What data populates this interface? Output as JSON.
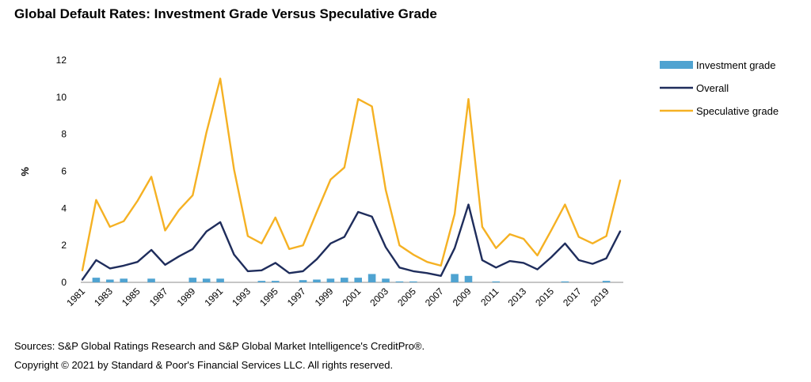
{
  "chart_data": {
    "type": "line",
    "title": "Global Default Rates: Investment Grade Versus Speculative Grade",
    "ylabel": "%",
    "xlabel": "",
    "ylim": [
      0,
      12
    ],
    "yticks": [
      0,
      2,
      4,
      6,
      8,
      10,
      12
    ],
    "x": [
      1981,
      1982,
      1983,
      1984,
      1985,
      1986,
      1987,
      1988,
      1989,
      1990,
      1991,
      1992,
      1993,
      1994,
      1995,
      1996,
      1997,
      1998,
      1999,
      2000,
      2001,
      2002,
      2003,
      2004,
      2005,
      2006,
      2007,
      2008,
      2009,
      2010,
      2011,
      2012,
      2013,
      2014,
      2015,
      2016,
      2017,
      2018,
      2019,
      2020
    ],
    "xticks": [
      "1981",
      "1983",
      "1985",
      "1987",
      "1989",
      "1991",
      "1993",
      "1995",
      "1997",
      "1999",
      "2001",
      "2003",
      "2005",
      "2007",
      "2009",
      "2011",
      "2013",
      "2015",
      "2017",
      "2019"
    ],
    "legend_position": "right",
    "grid": false,
    "series": [
      {
        "name": "Investment grade",
        "type": "bar",
        "color": "#4fa3d1",
        "values": [
          0,
          0.25,
          0.15,
          0.2,
          0,
          0.2,
          0,
          0,
          0.25,
          0.2,
          0.2,
          0,
          0,
          0.08,
          0.08,
          0,
          0.12,
          0.15,
          0.2,
          0.25,
          0.25,
          0.45,
          0.2,
          0.05,
          0.05,
          0,
          0,
          0.45,
          0.35,
          0,
          0.05,
          0,
          0,
          0,
          0,
          0.05,
          0,
          0,
          0.08,
          0
        ]
      },
      {
        "name": "Overall",
        "type": "line",
        "color": "#1f2d5c",
        "values": [
          0.15,
          1.2,
          0.75,
          0.9,
          1.1,
          1.75,
          0.95,
          1.4,
          1.8,
          2.75,
          3.25,
          1.5,
          0.6,
          0.65,
          1.05,
          0.5,
          0.6,
          1.25,
          2.1,
          2.45,
          3.8,
          3.55,
          1.9,
          0.8,
          0.6,
          0.5,
          0.35,
          1.85,
          4.2,
          1.2,
          0.8,
          1.15,
          1.05,
          0.7,
          1.35,
          2.1,
          1.2,
          1.0,
          1.3,
          2.75
        ]
      },
      {
        "name": "Speculative grade",
        "type": "line",
        "color": "#f5b123",
        "values": [
          0.65,
          4.45,
          3.0,
          3.3,
          4.4,
          5.7,
          2.8,
          3.9,
          4.7,
          8.1,
          11.0,
          6.1,
          2.5,
          2.1,
          3.5,
          1.8,
          2.0,
          3.8,
          5.55,
          6.2,
          9.9,
          9.5,
          5.0,
          2.0,
          1.5,
          1.1,
          0.9,
          3.7,
          9.9,
          3.0,
          1.85,
          2.6,
          2.35,
          1.45,
          2.8,
          4.2,
          2.45,
          2.1,
          2.5,
          5.5
        ]
      }
    ]
  },
  "footer": {
    "sources": "Sources: S&P Global Ratings Research and S&P Global Market Intelligence's CreditPro®.",
    "copyright": "Copyright © 2021 by Standard & Poor's Financial Services LLC. All rights reserved."
  }
}
